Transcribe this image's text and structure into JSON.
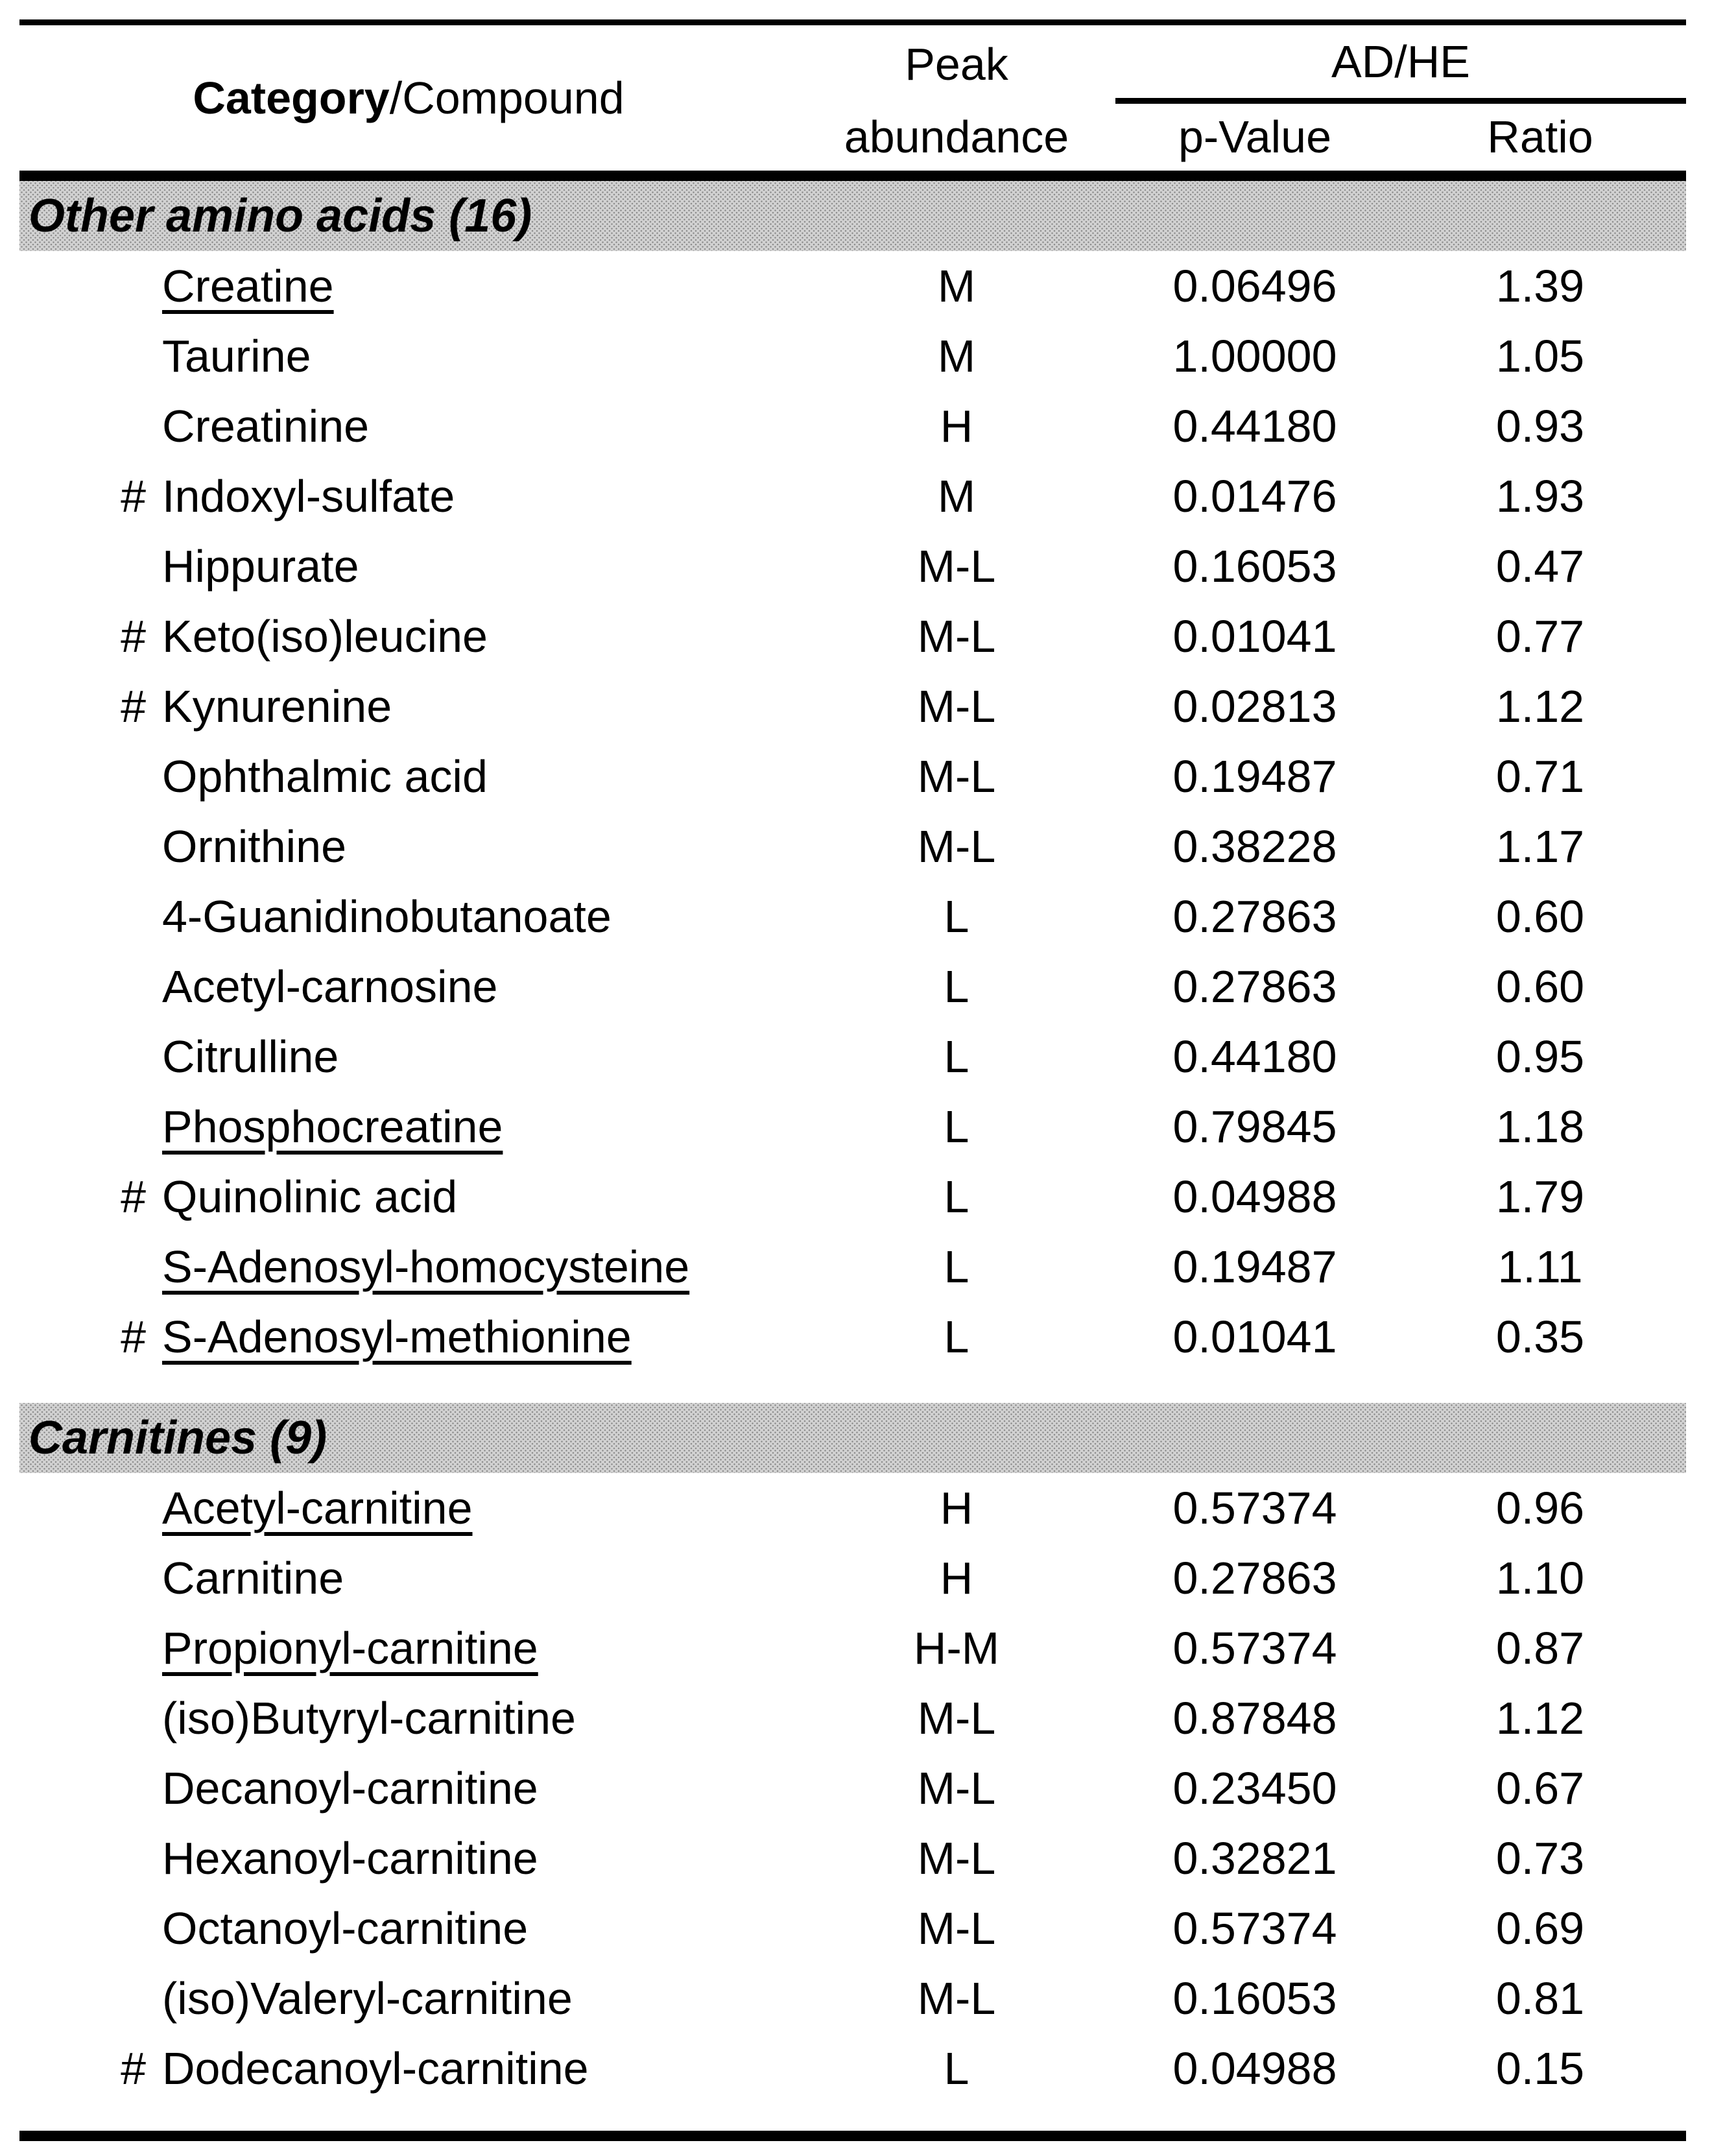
{
  "colors": {
    "background": "#ffffff",
    "text": "#000000",
    "rule_black": "#000000",
    "section_band_gray": "#d2d2d2"
  },
  "table": {
    "hash_symbol": "#",
    "header": {
      "category_bold": "Category",
      "compound_regular": "/Compound",
      "peak_line1": "Peak",
      "peak_line2": "abundance",
      "group": "AD/HE",
      "pvalue": "p-Value",
      "ratio": "Ratio"
    },
    "sections": [
      {
        "label": "Other amino acids (16)",
        "rows": [
          {
            "hash": false,
            "underline": true,
            "name": "Creatine",
            "peak": "M",
            "pvalue": "0.06496",
            "ratio": "1.39"
          },
          {
            "hash": false,
            "underline": false,
            "name": "Taurine",
            "peak": "M",
            "pvalue": "1.00000",
            "ratio": "1.05"
          },
          {
            "hash": false,
            "underline": false,
            "name": "Creatinine",
            "peak": "H",
            "pvalue": "0.44180",
            "ratio": "0.93"
          },
          {
            "hash": true,
            "underline": false,
            "name": "Indoxyl-sulfate",
            "peak": "M",
            "pvalue": "0.01476",
            "ratio": "1.93"
          },
          {
            "hash": false,
            "underline": false,
            "name": "Hippurate",
            "peak": "M-L",
            "pvalue": "0.16053",
            "ratio": "0.47"
          },
          {
            "hash": true,
            "underline": false,
            "name": "Keto(iso)leucine",
            "peak": "M-L",
            "pvalue": "0.01041",
            "ratio": "0.77"
          },
          {
            "hash": true,
            "underline": false,
            "name": "Kynurenine",
            "peak": "M-L",
            "pvalue": "0.02813",
            "ratio": "1.12"
          },
          {
            "hash": false,
            "underline": false,
            "name": "Ophthalmic acid",
            "peak": "M-L",
            "pvalue": "0.19487",
            "ratio": "0.71"
          },
          {
            "hash": false,
            "underline": false,
            "name": "Ornithine",
            "peak": "M-L",
            "pvalue": "0.38228",
            "ratio": "1.17"
          },
          {
            "hash": false,
            "underline": false,
            "name": "4-Guanidinobutanoate",
            "peak": "L",
            "pvalue": "0.27863",
            "ratio": "0.60"
          },
          {
            "hash": false,
            "underline": false,
            "name": "Acetyl-carnosine",
            "peak": "L",
            "pvalue": "0.27863",
            "ratio": "0.60"
          },
          {
            "hash": false,
            "underline": false,
            "name": "Citrulline",
            "peak": "L",
            "pvalue": "0.44180",
            "ratio": "0.95"
          },
          {
            "hash": false,
            "underline": true,
            "name": "Phosphocreatine",
            "peak": "L",
            "pvalue": "0.79845",
            "ratio": "1.18"
          },
          {
            "hash": true,
            "underline": false,
            "name": "Quinolinic acid",
            "peak": "L",
            "pvalue": "0.04988",
            "ratio": "1.79"
          },
          {
            "hash": false,
            "underline": true,
            "name": "S-Adenosyl-homocysteine",
            "peak": "L",
            "pvalue": "0.19487",
            "ratio": "1.11"
          },
          {
            "hash": true,
            "underline": true,
            "name": "S-Adenosyl-methionine",
            "peak": "L",
            "pvalue": "0.01041",
            "ratio": "0.35"
          }
        ]
      },
      {
        "label": "Carnitines (9)",
        "rows": [
          {
            "hash": false,
            "underline": true,
            "name": "Acetyl-carnitine",
            "peak": "H",
            "pvalue": "0.57374",
            "ratio": "0.96"
          },
          {
            "hash": false,
            "underline": false,
            "name": "Carnitine",
            "peak": "H",
            "pvalue": "0.27863",
            "ratio": "1.10"
          },
          {
            "hash": false,
            "underline": true,
            "name": "Propionyl-carnitine",
            "peak": "H-M",
            "pvalue": "0.57374",
            "ratio": "0.87"
          },
          {
            "hash": false,
            "underline": false,
            "name": "(iso)Butyryl-carnitine",
            "peak": "M-L",
            "pvalue": "0.87848",
            "ratio": "1.12"
          },
          {
            "hash": false,
            "underline": false,
            "name": "Decanoyl-carnitine",
            "peak": "M-L",
            "pvalue": "0.23450",
            "ratio": "0.67"
          },
          {
            "hash": false,
            "underline": false,
            "name": "Hexanoyl-carnitine",
            "peak": "M-L",
            "pvalue": "0.32821",
            "ratio": "0.73"
          },
          {
            "hash": false,
            "underline": false,
            "name": "Octanoyl-carnitine",
            "peak": "M-L",
            "pvalue": "0.57374",
            "ratio": "0.69"
          },
          {
            "hash": false,
            "underline": false,
            "name": "(iso)Valeryl-carnitine",
            "peak": "M-L",
            "pvalue": "0.16053",
            "ratio": "0.81"
          },
          {
            "hash": true,
            "underline": false,
            "name": "Dodecanoyl-carnitine",
            "peak": "L",
            "pvalue": "0.04988",
            "ratio": "0.15"
          }
        ]
      }
    ]
  }
}
